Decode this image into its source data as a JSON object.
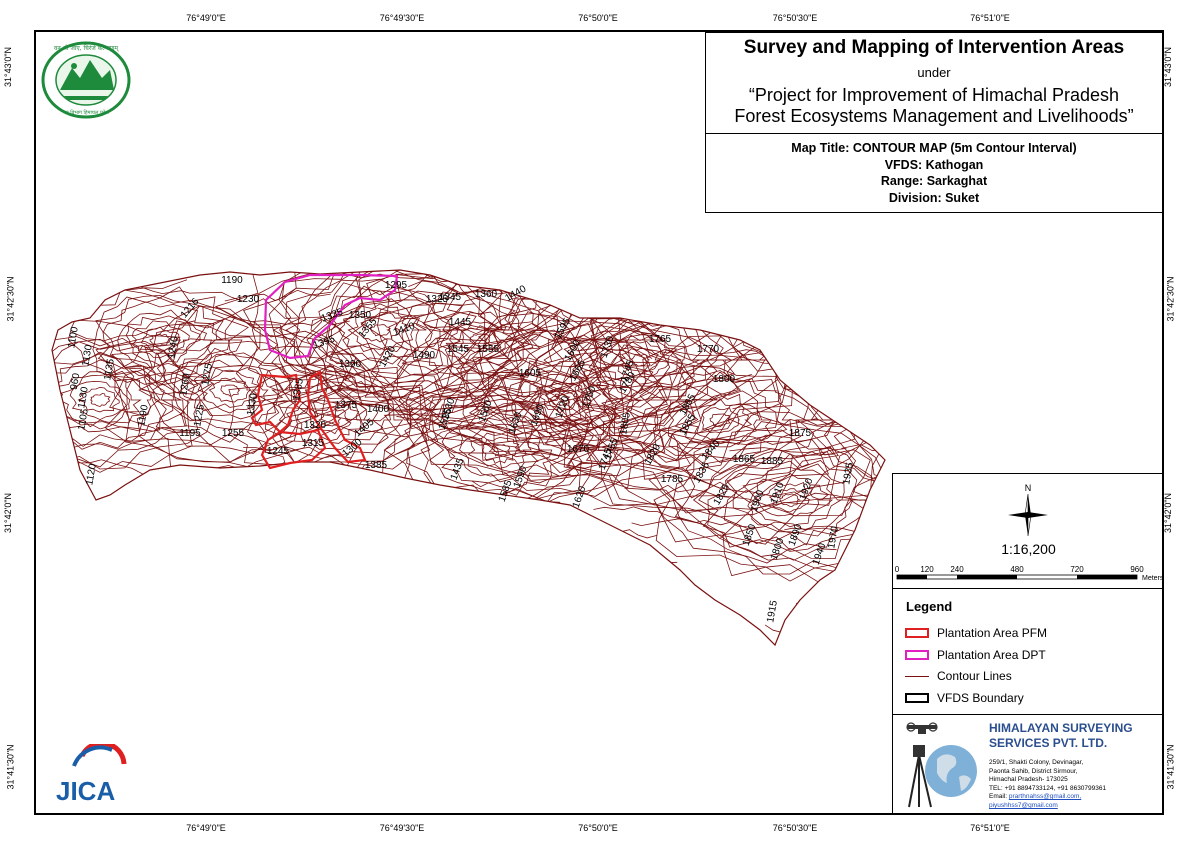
{
  "title": {
    "main": "Survey and Mapping of Intervention Areas",
    "under": "under",
    "project_line1": "“Project for Improvement of Himachal Pradesh",
    "project_line2": "Forest Ecosystems Management and Livelihoods”"
  },
  "map_info": {
    "map_title": "Map Title: CONTOUR MAP (5m Contour Interval)",
    "vfds": "VFDS: Kathogan",
    "range": "Range: Sarkaghat",
    "division": "Division: Suket"
  },
  "graticule": {
    "top": [
      "76°49'0\"E",
      "76°49'30\"E",
      "76°50'0\"E",
      "76°50'30\"E",
      "76°51'0\"E"
    ],
    "bottom": [
      "76°49'0\"E",
      "76°49'30\"E",
      "76°50'0\"E",
      "76°50'30\"E",
      "76°51'0\"E"
    ],
    "left": [
      "31°43'0\"N",
      "31°42'30\"N",
      "31°42'0\"N",
      "31°41'30\"N"
    ],
    "right": [
      "31°43'0\"N",
      "31°42'30\"N",
      "31°42'0\"N",
      "31°41'30\"N"
    ]
  },
  "north_arrow": {
    "label": "N"
  },
  "scale": {
    "ratio": "1:16,200",
    "ticks": [
      "0",
      "120",
      "240",
      "480",
      "720",
      "960"
    ],
    "unit": "Meters"
  },
  "legend": {
    "title": "Legend",
    "items": [
      {
        "label": "Plantation Area PFM",
        "color": "#e02020"
      },
      {
        "label": "Plantation Area DPT",
        "color": "#e020c0"
      },
      {
        "label": "Contour Lines",
        "color": "#7a1010"
      },
      {
        "label": "VFDS Boundary",
        "color": "#000000"
      }
    ]
  },
  "company": {
    "name_line1": "HIMALAYAN SURVEYING",
    "name_line2": "SERVICES PVT. LTD.",
    "address_lines": [
      "259/1, Shakti Colony, Devinagar,",
      "Paonta Sahib, District Sirmour,",
      "Himachal Pradesh- 173025",
      "TEL: +91 8894733124, +91 8630799361"
    ],
    "email_label": "Email:",
    "email1": "prarthnahss@gmail.com,",
    "email2": "piyushhss7@gmail.com"
  },
  "logos": {
    "forest_dept_text": "वन श्री जाए, चिरंजे कल्याणम्",
    "forest_dept_bottom": "वन विभाग हिमाचल प्रदेश",
    "jica": "JICA"
  },
  "contour_labels": [
    "1190",
    "1230",
    "1295",
    "1325",
    "1345",
    "1360",
    "1440",
    "1216",
    "1335",
    "1350",
    "1355",
    "1410",
    "1445",
    "1595",
    "1100",
    "1130",
    "1240",
    "1395",
    "1420",
    "1490",
    "1545",
    "1555",
    "1600",
    "1730",
    "1765",
    "1770",
    "1135",
    "1390",
    "1605",
    "1665",
    "1745",
    "1780",
    "1800",
    "1260",
    "1275",
    "1385",
    "1375",
    "1400",
    "1530",
    "1535",
    "1560",
    "1630",
    "1690",
    "1720",
    "1750",
    "1805",
    "1865",
    "1855",
    "1130",
    "1190",
    "1225",
    "1330",
    "1320",
    "1405",
    "1840",
    "1865",
    "1875",
    "1195",
    "1255",
    "1315",
    "1300",
    "1755",
    "1745",
    "1670",
    "1820",
    "1835",
    "1885",
    "1245",
    "1385",
    "1435",
    "1590",
    "1585",
    "1620",
    "1785",
    "1825",
    "1900",
    "1910",
    "1920",
    "1935",
    "1850",
    "1890",
    "1800",
    "1940",
    "1970",
    "1915",
    "1105",
    "1120",
    "960"
  ],
  "colors": {
    "contour": "#7a1010",
    "pfm": "#e02020",
    "dpt": "#e020c0",
    "company_blue": "#2b4e8f",
    "forest_green": "#1e8a3c",
    "jica_blue": "#1a5ea8",
    "jica_red": "#e02020"
  }
}
